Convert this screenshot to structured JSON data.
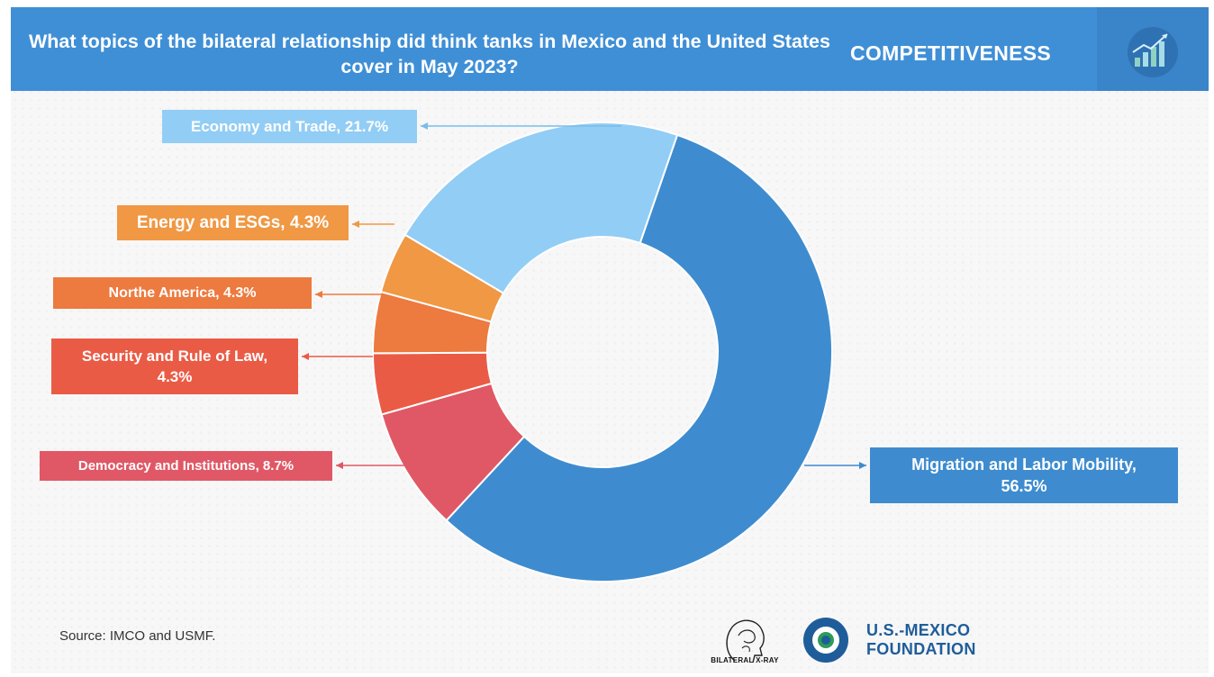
{
  "header": {
    "title": "What topics of the bilateral relationship did think tanks in Mexico and the United States cover in May 2023?",
    "section": "COMPETITIVENESS",
    "icon": "bar-chart-growth-icon"
  },
  "chart_data": {
    "type": "pie",
    "donut": true,
    "slices": [
      {
        "label": "Migration and Labor Mobility, 56.5%",
        "value": 56.5,
        "color": "#3e8ccf"
      },
      {
        "label": "Democracy and Institutions, 8.7%",
        "value": 8.7,
        "color": "#e05866"
      },
      {
        "label": "Security and Rule of Law, 4.3%",
        "value": 4.3,
        "color": "#ea5b45"
      },
      {
        "label": "Northe America, 4.3%",
        "value": 4.3,
        "color": "#ed7a3f"
      },
      {
        "label": "Energy and ESGs, 4.3%",
        "value": 4.3,
        "color": "#f09844"
      },
      {
        "label": "Economy and Trade, 21.7%",
        "value": 21.7,
        "color": "#92cdf5"
      }
    ]
  },
  "footer": {
    "source": "Source: IMCO and USMF.",
    "xray_logo_text": "BILATERAL X-RAY",
    "usmf_line1": "U.S.-MEXICO",
    "usmf_line2": "FOUNDATION"
  }
}
